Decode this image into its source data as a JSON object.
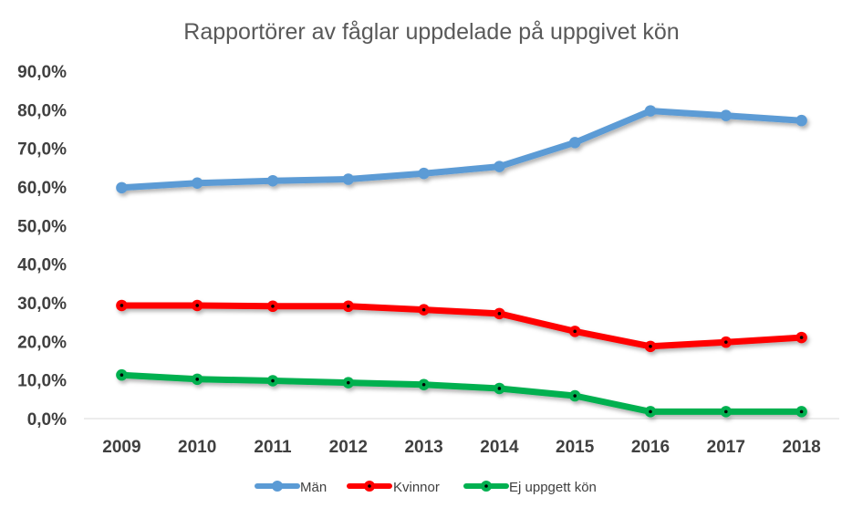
{
  "chart_data": {
    "type": "line",
    "title": "Rapportörer av fåglar uppdelade på uppgivet kön",
    "categories": [
      "2009",
      "2010",
      "2011",
      "2012",
      "2013",
      "2014",
      "2015",
      "2016",
      "2017",
      "2018"
    ],
    "ylim": [
      0,
      90
    ],
    "yticks": [
      0,
      10,
      20,
      30,
      40,
      50,
      60,
      70,
      80,
      90
    ],
    "ytick_labels": [
      "0,0%",
      "10,0%",
      "20,0%",
      "30,0%",
      "40,0%",
      "50,0%",
      "60,0%",
      "70,0%",
      "80,0%",
      "90,0%"
    ],
    "xlabel": "",
    "ylabel": "",
    "grid": false,
    "legend_position": "bottom",
    "series": [
      {
        "name": "Män",
        "color": "#5B9BD5",
        "values": [
          59.8,
          61.0,
          61.6,
          62.0,
          63.5,
          65.3,
          71.5,
          79.7,
          78.5,
          77.2
        ]
      },
      {
        "name": "Kvinnor",
        "color": "#FF0000",
        "values": [
          29.3,
          29.3,
          29.1,
          29.1,
          28.2,
          27.2,
          22.6,
          18.7,
          19.8,
          21.0
        ]
      },
      {
        "name": "Ej uppgett kön",
        "color": "#00B050",
        "values": [
          11.3,
          10.2,
          9.8,
          9.3,
          8.8,
          7.8,
          5.9,
          1.8,
          1.8,
          1.8
        ]
      }
    ]
  }
}
